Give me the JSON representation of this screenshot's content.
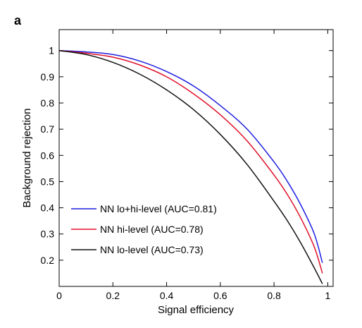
{
  "panel_label": "a",
  "chart_data": {
    "type": "line",
    "xlabel": "Signal efficiency",
    "ylabel": "Background rejection",
    "xlim": [
      0,
      1.02
    ],
    "ylim": [
      0.1,
      1.08
    ],
    "xticks": [
      0,
      0.2,
      0.4,
      0.6,
      0.8,
      1
    ],
    "xtick_labels": [
      "0",
      "0.2",
      "0.4",
      "0.6",
      "0.8",
      "1"
    ],
    "yticks": [
      0.2,
      0.3,
      0.4,
      0.5,
      0.6,
      0.7,
      0.8,
      0.9,
      1
    ],
    "ytick_labels": [
      "0.2",
      "0.3",
      "0.4",
      "0.5",
      "0.6",
      "0.7",
      "0.8",
      "0.9",
      "1"
    ],
    "grid": false,
    "legend": "bottom-left",
    "series": [
      {
        "name": "NN lo+hi-level (AUC=0.81)",
        "color": "#1f1fe0",
        "x": [
          0,
          0.1,
          0.2,
          0.3,
          0.4,
          0.5,
          0.6,
          0.7,
          0.8,
          0.85,
          0.9,
          0.95,
          0.98
        ],
        "y": [
          1.0,
          0.995,
          0.985,
          0.96,
          0.92,
          0.865,
          0.79,
          0.7,
          0.575,
          0.5,
          0.41,
          0.3,
          0.19
        ]
      },
      {
        "name": "NN hi-level (AUC=0.78)",
        "color": "#e0102a",
        "x": [
          0,
          0.1,
          0.2,
          0.3,
          0.4,
          0.5,
          0.6,
          0.7,
          0.8,
          0.85,
          0.9,
          0.95,
          0.98
        ],
        "y": [
          1.0,
          0.99,
          0.975,
          0.945,
          0.9,
          0.835,
          0.755,
          0.655,
          0.525,
          0.45,
          0.36,
          0.25,
          0.15
        ]
      },
      {
        "name": "NN lo-level (AUC=0.73)",
        "color": "#111111",
        "x": [
          0,
          0.1,
          0.2,
          0.3,
          0.4,
          0.5,
          0.6,
          0.7,
          0.8,
          0.85,
          0.9,
          0.95,
          0.98
        ],
        "y": [
          1.0,
          0.985,
          0.955,
          0.91,
          0.85,
          0.775,
          0.68,
          0.565,
          0.425,
          0.35,
          0.265,
          0.17,
          0.11
        ]
      }
    ]
  }
}
